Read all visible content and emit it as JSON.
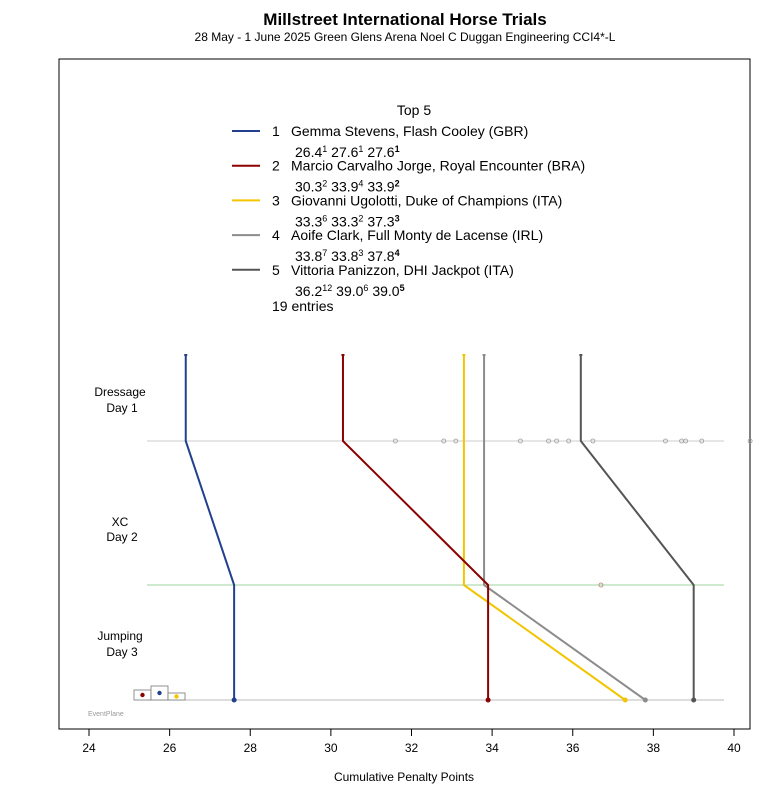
{
  "title": "Millstreet International Horse Trials",
  "subtitle": "28 May -  1 June 2025  Green Glens Arena   Noel C Duggan Engineering CCI4*-L",
  "legend_title": "Top 5",
  "entries_note": "19 entries",
  "watermark": "EventPlane",
  "chart_data": {
    "type": "line",
    "title": "Millstreet International Horse Trials",
    "xlabel": "Cumulative Penalty Points",
    "xlim": [
      23.3,
      40.4
    ],
    "x_ticks": [
      24,
      26,
      28,
      30,
      32,
      34,
      36,
      38,
      40
    ],
    "phases": [
      {
        "name": "Dressage",
        "day": "Day 1"
      },
      {
        "name": "XC",
        "day": "Day 2"
      },
      {
        "name": "Jumping",
        "day": "Day 3"
      }
    ],
    "legend_position": "top-center",
    "series": [
      {
        "rank": "1",
        "name": "Gemma Stevens,  Flash Cooley  (GBR)",
        "color": "#23408e",
        "values": [
          26.4,
          27.6,
          27.6
        ],
        "score_labels": [
          {
            "score": "26.4",
            "rank": "1"
          },
          {
            "score": "27.6",
            "rank": "1"
          },
          {
            "score": "27.6",
            "rank": "1"
          }
        ]
      },
      {
        "rank": "2",
        "name": "Marcio Carvalho Jorge,  Royal Encounter  (BRA)",
        "color": "#8b0000",
        "values": [
          30.3,
          33.9,
          33.9
        ],
        "score_labels": [
          {
            "score": "30.3",
            "rank": "2"
          },
          {
            "score": "33.9",
            "rank": "4"
          },
          {
            "score": "33.9",
            "rank": "2"
          }
        ]
      },
      {
        "rank": "3",
        "name": "Giovanni Ugolotti,  Duke of Champions  (ITA)",
        "color": "#f2c500",
        "values": [
          33.3,
          33.3,
          37.3
        ],
        "score_labels": [
          {
            "score": "33.3",
            "rank": "6"
          },
          {
            "score": "33.3",
            "rank": "2"
          },
          {
            "score": "37.3",
            "rank": "3"
          }
        ]
      },
      {
        "rank": "4",
        "name": "Aoife Clark,  Full Monty de Lacense  (IRL)",
        "color": "#8c8c8c",
        "values": [
          33.8,
          33.8,
          37.8
        ],
        "score_labels": [
          {
            "score": "33.8",
            "rank": "7"
          },
          {
            "score": "33.8",
            "rank": "3"
          },
          {
            "score": "37.8",
            "rank": "4"
          }
        ]
      },
      {
        "rank": "5",
        "name": "Vittoria Panizzon,  DHI Jackpot  (ITA)",
        "color": "#555555",
        "values": [
          36.2,
          39.0,
          39.0
        ],
        "score_labels": [
          {
            "score": "36.2",
            "rank": "12"
          },
          {
            "score": "39.0",
            "rank": "6"
          },
          {
            "score": "39.0",
            "rank": "5"
          }
        ]
      }
    ],
    "other_points": {
      "dressage": [
        31.6,
        32.8,
        33.1,
        34.7,
        35.4,
        35.6,
        35.9,
        36.5,
        38.3,
        38.7,
        38.8,
        39.2,
        40.4
      ],
      "xc": [
        36.7
      ]
    },
    "phase_line_colors": {
      "dressage": "#cccccc",
      "xc": "#9fd39f",
      "jumping": "#bbbbbb"
    }
  }
}
